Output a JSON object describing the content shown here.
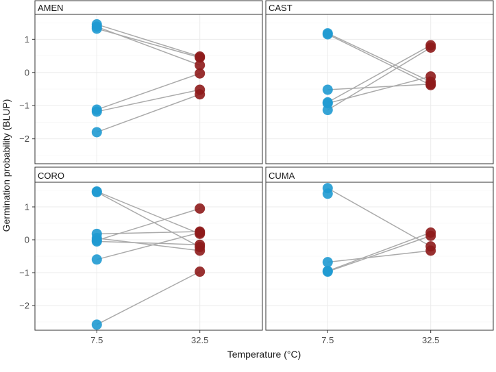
{
  "chart_data": {
    "type": "scatter",
    "layout": "faceted 2x2 grid, shared axes",
    "xlabel": "Temperature (°C)",
    "ylabel": "Germination probability (BLUP)",
    "x_categories": [
      "7.5",
      "32.5"
    ],
    "ylim": [
      -2.75,
      1.75
    ],
    "yticks": [
      -2,
      -1,
      0,
      1
    ],
    "grid": true,
    "colors": {
      "7.5": "#1f9ad2",
      "32.5": "#8e1b1b",
      "line": "#aaaaaa",
      "strip_bg": "#ffffff",
      "panel_border": "#333333"
    },
    "facets": [
      {
        "name": "AMEN",
        "pairs": [
          {
            "x7_5": 1.45,
            "x32_5": 0.48
          },
          {
            "x7_5": 1.38,
            "x32_5": 0.22
          },
          {
            "x7_5": 1.32,
            "x32_5": 0.45
          },
          {
            "x7_5": -1.12,
            "x32_5": -0.03
          },
          {
            "x7_5": -1.18,
            "x32_5": -0.52
          },
          {
            "x7_5": -1.8,
            "x32_5": -0.66
          }
        ]
      },
      {
        "name": "CAST",
        "pairs": [
          {
            "x7_5": 1.18,
            "x32_5": -0.28
          },
          {
            "x7_5": 1.15,
            "x32_5": -0.38
          },
          {
            "x7_5": -0.52,
            "x32_5": -0.35
          },
          {
            "x7_5": -0.9,
            "x32_5": 0.82
          },
          {
            "x7_5": -0.93,
            "x32_5": -0.12
          },
          {
            "x7_5": -1.13,
            "x32_5": 0.75
          }
        ]
      },
      {
        "name": "CORO",
        "pairs": [
          {
            "x7_5": 1.47,
            "x32_5": 0.18
          },
          {
            "x7_5": 1.45,
            "x32_5": -0.22
          },
          {
            "x7_5": 0.18,
            "x32_5": 0.25
          },
          {
            "x7_5": 0.05,
            "x32_5": -0.33
          },
          {
            "x7_5": -0.02,
            "x32_5": 0.95
          },
          {
            "x7_5": -0.05,
            "x32_5": -0.15
          },
          {
            "x7_5": -0.6,
            "x32_5": 0.22
          },
          {
            "x7_5": -2.58,
            "x32_5": -0.97
          }
        ]
      },
      {
        "name": "CUMA",
        "pairs": [
          {
            "x7_5": 1.57,
            "x32_5": -0.2
          },
          {
            "x7_5": 1.4,
            "x32_5": null
          },
          {
            "x7_5": -0.68,
            "x32_5": -0.33
          },
          {
            "x7_5": -0.95,
            "x32_5": 0.22
          },
          {
            "x7_5": -0.97,
            "x32_5": 0.12
          }
        ]
      }
    ]
  }
}
